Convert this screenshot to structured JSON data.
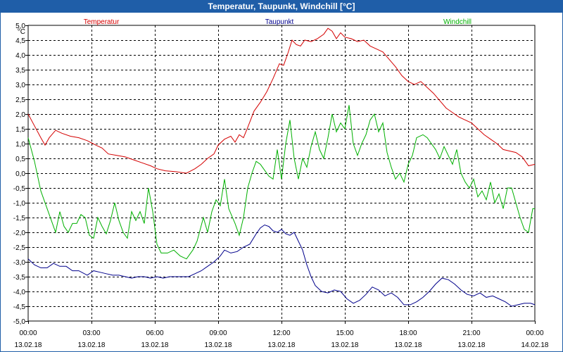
{
  "window": {
    "title": "Temperatur, Taupunkt, Windchill [°C]"
  },
  "colors": {
    "titlebar": "#1f5ea8",
    "temperature": "#d40000",
    "dewpoint": "#00008b",
    "windchill": "#00b000",
    "grid": "#000000"
  },
  "chart_data": {
    "type": "line",
    "title": "Temperatur, Taupunkt, Windchill [°C]",
    "ylabel": "°C",
    "ylim": [
      -5.0,
      5.0
    ],
    "ytick_labels": [
      "5,0",
      "4,5",
      "4,0",
      "3,5",
      "3,0",
      "2,5",
      "2,0",
      "1,5",
      "1,0",
      "0,5",
      "0,0",
      "-0,5",
      "-1,0",
      "-1,5",
      "-2,0",
      "-2,5",
      "-3,0",
      "-3,5",
      "-4,0",
      "-4,5",
      "-5,0"
    ],
    "x_unit": "hours since 13.02.18 00:00",
    "xlim": [
      0,
      24
    ],
    "xticks": [
      {
        "time": "00:00",
        "date": "13.02.18"
      },
      {
        "time": "03:00",
        "date": "13.02.18"
      },
      {
        "time": "06:00",
        "date": "13.02.18"
      },
      {
        "time": "09:00",
        "date": "13.02.18"
      },
      {
        "time": "12:00",
        "date": "13.02.18"
      },
      {
        "time": "15:00",
        "date": "13.02.18"
      },
      {
        "time": "18:00",
        "date": "13.02.18"
      },
      {
        "time": "21:00",
        "date": "13.02.18"
      },
      {
        "time": "00:00",
        "date": "14.02.18"
      }
    ],
    "grid": true,
    "legend_position": "top",
    "series": [
      {
        "name": "Temperatur",
        "color": "#d40000",
        "points": [
          [
            0,
            2.0
          ],
          [
            0.3,
            1.6
          ],
          [
            0.6,
            1.2
          ],
          [
            0.8,
            0.95
          ],
          [
            1.0,
            1.2
          ],
          [
            1.3,
            1.45
          ],
          [
            1.6,
            1.35
          ],
          [
            2.0,
            1.25
          ],
          [
            2.4,
            1.2
          ],
          [
            2.8,
            1.1
          ],
          [
            3.2,
            0.95
          ],
          [
            3.5,
            0.85
          ],
          [
            3.8,
            0.65
          ],
          [
            4.2,
            0.6
          ],
          [
            4.6,
            0.55
          ],
          [
            5.0,
            0.45
          ],
          [
            5.4,
            0.35
          ],
          [
            5.8,
            0.25
          ],
          [
            6.1,
            0.15
          ],
          [
            6.5,
            0.08
          ],
          [
            7.0,
            0.05
          ],
          [
            7.5,
            0.0
          ],
          [
            7.9,
            0.15
          ],
          [
            8.2,
            0.3
          ],
          [
            8.5,
            0.5
          ],
          [
            8.8,
            0.65
          ],
          [
            9.0,
            0.95
          ],
          [
            9.3,
            1.15
          ],
          [
            9.6,
            1.25
          ],
          [
            9.8,
            1.05
          ],
          [
            10.0,
            1.3
          ],
          [
            10.2,
            1.2
          ],
          [
            10.4,
            1.55
          ],
          [
            10.7,
            2.1
          ],
          [
            11.0,
            2.4
          ],
          [
            11.3,
            2.75
          ],
          [
            11.6,
            3.2
          ],
          [
            11.9,
            3.7
          ],
          [
            12.1,
            3.65
          ],
          [
            12.3,
            4.05
          ],
          [
            12.5,
            4.5
          ],
          [
            12.7,
            4.35
          ],
          [
            12.9,
            4.3
          ],
          [
            13.1,
            4.5
          ],
          [
            13.4,
            4.45
          ],
          [
            13.7,
            4.55
          ],
          [
            14.0,
            4.7
          ],
          [
            14.2,
            4.9
          ],
          [
            14.4,
            4.8
          ],
          [
            14.6,
            4.55
          ],
          [
            14.8,
            4.75
          ],
          [
            15.0,
            4.6
          ],
          [
            15.3,
            4.55
          ],
          [
            15.6,
            4.45
          ],
          [
            15.9,
            4.5
          ],
          [
            16.2,
            4.3
          ],
          [
            16.5,
            4.2
          ],
          [
            16.8,
            4.1
          ],
          [
            17.1,
            3.85
          ],
          [
            17.4,
            3.6
          ],
          [
            17.7,
            3.3
          ],
          [
            18.0,
            3.1
          ],
          [
            18.3,
            3.0
          ],
          [
            18.6,
            3.1
          ],
          [
            18.9,
            2.9
          ],
          [
            19.2,
            2.7
          ],
          [
            19.5,
            2.45
          ],
          [
            19.8,
            2.2
          ],
          [
            20.1,
            2.05
          ],
          [
            20.4,
            1.9
          ],
          [
            20.7,
            1.8
          ],
          [
            21.0,
            1.7
          ],
          [
            21.3,
            1.5
          ],
          [
            21.6,
            1.3
          ],
          [
            21.9,
            1.15
          ],
          [
            22.2,
            1.0
          ],
          [
            22.5,
            0.8
          ],
          [
            22.8,
            0.75
          ],
          [
            23.1,
            0.7
          ],
          [
            23.4,
            0.55
          ],
          [
            23.7,
            0.25
          ],
          [
            24.0,
            0.3
          ]
        ]
      },
      {
        "name": "Taupunkt",
        "color": "#00008b",
        "points": [
          [
            0,
            -2.9
          ],
          [
            0.3,
            -3.1
          ],
          [
            0.6,
            -3.2
          ],
          [
            0.9,
            -3.2
          ],
          [
            1.2,
            -3.05
          ],
          [
            1.5,
            -3.15
          ],
          [
            1.8,
            -3.15
          ],
          [
            2.1,
            -3.3
          ],
          [
            2.4,
            -3.3
          ],
          [
            2.8,
            -3.45
          ],
          [
            3.1,
            -3.3
          ],
          [
            3.4,
            -3.35
          ],
          [
            3.7,
            -3.4
          ],
          [
            4.0,
            -3.45
          ],
          [
            4.3,
            -3.45
          ],
          [
            4.6,
            -3.5
          ],
          [
            4.9,
            -3.55
          ],
          [
            5.2,
            -3.5
          ],
          [
            5.5,
            -3.5
          ],
          [
            5.8,
            -3.55
          ],
          [
            6.1,
            -3.5
          ],
          [
            6.4,
            -3.55
          ],
          [
            6.7,
            -3.5
          ],
          [
            7.0,
            -3.5
          ],
          [
            7.3,
            -3.5
          ],
          [
            7.6,
            -3.5
          ],
          [
            7.9,
            -3.4
          ],
          [
            8.2,
            -3.3
          ],
          [
            8.5,
            -3.15
          ],
          [
            8.8,
            -3.0
          ],
          [
            9.1,
            -2.8
          ],
          [
            9.3,
            -2.6
          ],
          [
            9.6,
            -2.7
          ],
          [
            9.9,
            -2.65
          ],
          [
            10.2,
            -2.5
          ],
          [
            10.5,
            -2.4
          ],
          [
            10.8,
            -2.05
          ],
          [
            11.0,
            -1.85
          ],
          [
            11.2,
            -1.75
          ],
          [
            11.4,
            -1.8
          ],
          [
            11.6,
            -1.95
          ],
          [
            11.8,
            -2.0
          ],
          [
            12.0,
            -1.9
          ],
          [
            12.2,
            -2.05
          ],
          [
            12.4,
            -2.1
          ],
          [
            12.6,
            -2.0
          ],
          [
            12.8,
            -2.3
          ],
          [
            13.0,
            -2.6
          ],
          [
            13.2,
            -3.1
          ],
          [
            13.4,
            -3.5
          ],
          [
            13.6,
            -3.8
          ],
          [
            13.9,
            -4.0
          ],
          [
            14.2,
            -4.05
          ],
          [
            14.5,
            -3.95
          ],
          [
            14.8,
            -4.0
          ],
          [
            15.1,
            -4.25
          ],
          [
            15.4,
            -4.4
          ],
          [
            15.7,
            -4.3
          ],
          [
            16.0,
            -4.1
          ],
          [
            16.3,
            -3.85
          ],
          [
            16.6,
            -3.95
          ],
          [
            16.9,
            -4.15
          ],
          [
            17.2,
            -4.05
          ],
          [
            17.5,
            -4.2
          ],
          [
            17.8,
            -4.45
          ],
          [
            18.1,
            -4.45
          ],
          [
            18.4,
            -4.35
          ],
          [
            18.7,
            -4.2
          ],
          [
            19.0,
            -4.0
          ],
          [
            19.3,
            -3.75
          ],
          [
            19.6,
            -3.55
          ],
          [
            19.9,
            -3.6
          ],
          [
            20.2,
            -3.75
          ],
          [
            20.5,
            -3.95
          ],
          [
            20.8,
            -4.1
          ],
          [
            21.1,
            -4.15
          ],
          [
            21.4,
            -4.05
          ],
          [
            21.7,
            -4.2
          ],
          [
            22.0,
            -4.15
          ],
          [
            22.3,
            -4.25
          ],
          [
            22.6,
            -4.35
          ],
          [
            22.9,
            -4.5
          ],
          [
            23.2,
            -4.45
          ],
          [
            23.5,
            -4.4
          ],
          [
            23.8,
            -4.4
          ],
          [
            24.0,
            -4.45
          ]
        ]
      },
      {
        "name": "Windchill",
        "color": "#00b000",
        "points": [
          [
            0,
            1.2
          ],
          [
            0.3,
            0.4
          ],
          [
            0.6,
            -0.6
          ],
          [
            0.9,
            -1.2
          ],
          [
            1.1,
            -1.6
          ],
          [
            1.3,
            -2.0
          ],
          [
            1.5,
            -1.3
          ],
          [
            1.7,
            -1.8
          ],
          [
            1.9,
            -2.0
          ],
          [
            2.1,
            -1.7
          ],
          [
            2.3,
            -1.7
          ],
          [
            2.5,
            -1.4
          ],
          [
            2.7,
            -1.5
          ],
          [
            2.9,
            -2.1
          ],
          [
            3.1,
            -2.2
          ],
          [
            3.3,
            -1.5
          ],
          [
            3.5,
            -1.8
          ],
          [
            3.7,
            -2.05
          ],
          [
            3.9,
            -1.6
          ],
          [
            4.1,
            -1.0
          ],
          [
            4.3,
            -1.6
          ],
          [
            4.5,
            -2.0
          ],
          [
            4.7,
            -2.2
          ],
          [
            4.9,
            -1.3
          ],
          [
            5.1,
            -1.6
          ],
          [
            5.3,
            -1.3
          ],
          [
            5.5,
            -1.7
          ],
          [
            5.7,
            -0.5
          ],
          [
            5.9,
            -1.3
          ],
          [
            6.1,
            -2.4
          ],
          [
            6.3,
            -2.7
          ],
          [
            6.6,
            -2.7
          ],
          [
            6.9,
            -2.6
          ],
          [
            7.2,
            -2.8
          ],
          [
            7.5,
            -2.9
          ],
          [
            7.8,
            -2.6
          ],
          [
            8.0,
            -2.3
          ],
          [
            8.3,
            -1.5
          ],
          [
            8.5,
            -2.0
          ],
          [
            8.7,
            -1.3
          ],
          [
            8.9,
            -0.9
          ],
          [
            9.1,
            -1.1
          ],
          [
            9.3,
            -0.2
          ],
          [
            9.5,
            -1.2
          ],
          [
            9.8,
            -1.7
          ],
          [
            10.0,
            -2.1
          ],
          [
            10.2,
            -1.5
          ],
          [
            10.4,
            -0.5
          ],
          [
            10.6,
            0.0
          ],
          [
            10.8,
            0.4
          ],
          [
            11.0,
            0.3
          ],
          [
            11.2,
            0.1
          ],
          [
            11.4,
            -0.1
          ],
          [
            11.6,
            -0.2
          ],
          [
            11.8,
            0.8
          ],
          [
            12.0,
            -0.2
          ],
          [
            12.2,
            1.0
          ],
          [
            12.4,
            1.8
          ],
          [
            12.6,
            0.5
          ],
          [
            12.8,
            -0.2
          ],
          [
            13.0,
            0.5
          ],
          [
            13.2,
            0.2
          ],
          [
            13.4,
            0.9
          ],
          [
            13.6,
            1.4
          ],
          [
            13.8,
            0.8
          ],
          [
            14.0,
            0.5
          ],
          [
            14.2,
            1.2
          ],
          [
            14.4,
            2.0
          ],
          [
            14.6,
            1.4
          ],
          [
            14.8,
            1.7
          ],
          [
            15.0,
            1.5
          ],
          [
            15.2,
            2.3
          ],
          [
            15.4,
            1.0
          ],
          [
            15.6,
            0.6
          ],
          [
            15.8,
            1.0
          ],
          [
            16.0,
            1.3
          ],
          [
            16.2,
            1.8
          ],
          [
            16.4,
            2.0
          ],
          [
            16.6,
            1.4
          ],
          [
            16.8,
            1.7
          ],
          [
            17.0,
            0.7
          ],
          [
            17.2,
            0.2
          ],
          [
            17.4,
            -0.2
          ],
          [
            17.6,
            0.0
          ],
          [
            17.8,
            -0.3
          ],
          [
            18.0,
            0.3
          ],
          [
            18.2,
            0.6
          ],
          [
            18.4,
            1.2
          ],
          [
            18.7,
            1.3
          ],
          [
            18.9,
            1.2
          ],
          [
            19.1,
            1.0
          ],
          [
            19.3,
            0.8
          ],
          [
            19.5,
            0.5
          ],
          [
            19.7,
            0.9
          ],
          [
            19.9,
            0.6
          ],
          [
            20.1,
            0.3
          ],
          [
            20.3,
            0.8
          ],
          [
            20.5,
            0.0
          ],
          [
            20.7,
            -0.3
          ],
          [
            20.9,
            -0.5
          ],
          [
            21.1,
            -0.2
          ],
          [
            21.3,
            -0.8
          ],
          [
            21.5,
            -0.6
          ],
          [
            21.7,
            -0.9
          ],
          [
            21.9,
            -0.3
          ],
          [
            22.1,
            -1.0
          ],
          [
            22.3,
            -0.7
          ],
          [
            22.5,
            -1.2
          ],
          [
            22.7,
            -0.5
          ],
          [
            22.9,
            -0.5
          ],
          [
            23.1,
            -1.0
          ],
          [
            23.3,
            -1.5
          ],
          [
            23.5,
            -1.9
          ],
          [
            23.7,
            -2.0
          ],
          [
            23.9,
            -1.2
          ],
          [
            24.0,
            -1.2
          ]
        ]
      }
    ]
  }
}
